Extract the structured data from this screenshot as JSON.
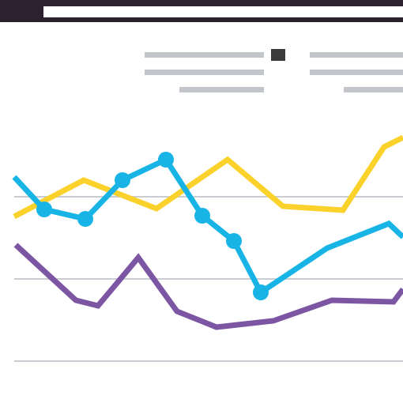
{
  "colors": {
    "window_frame": "#2b2230",
    "address_bar": "#ffffff",
    "background": "#ffffff",
    "placeholder_text": "#c2c6ca",
    "legend_marker": "#3b3b3b",
    "gridline": "#c9cdd1",
    "series_yellow": "#fbd12b",
    "series_blue": "#18b4e6",
    "series_purple": "#7d56a3"
  },
  "icons": {
    "legend_marker": "square-icon"
  },
  "chart_data": {
    "type": "line",
    "grid": true,
    "y_gridlines": 3,
    "legend": "top-right",
    "series": [
      {
        "color_key": "series_yellow",
        "markers": false,
        "points": [
          [
            18,
            274
          ],
          [
            106,
            228
          ],
          [
            198,
            264
          ],
          [
            288,
            202
          ],
          [
            358,
            261
          ],
          [
            434,
            266
          ],
          [
            486,
            186
          ],
          [
            510,
            174
          ]
        ]
      },
      {
        "color_key": "series_blue",
        "markers": true,
        "points": [
          [
            18,
            224
          ],
          [
            56,
            265
          ],
          [
            108,
            277
          ],
          [
            155,
            228
          ],
          [
            210,
            202
          ],
          [
            256,
            273
          ],
          [
            296,
            305
          ],
          [
            330,
            370
          ],
          [
            414,
            314
          ],
          [
            492,
            283
          ],
          [
            510,
            300
          ]
        ],
        "marker_indices": [
          1,
          2,
          3,
          4,
          5,
          6,
          7
        ]
      },
      {
        "color_key": "series_purple",
        "markers": false,
        "points": [
          [
            20,
            310
          ],
          [
            96,
            380
          ],
          [
            124,
            387
          ],
          [
            175,
            326
          ],
          [
            224,
            394
          ],
          [
            274,
            414
          ],
          [
            346,
            406
          ],
          [
            420,
            380
          ],
          [
            498,
            382
          ],
          [
            510,
            366
          ]
        ]
      }
    ]
  }
}
